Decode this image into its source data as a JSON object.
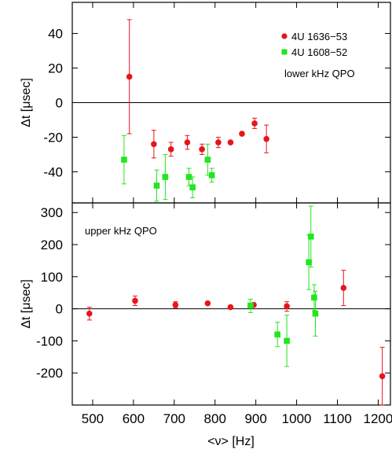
{
  "chart_data": [
    {
      "type": "scatter",
      "panel": "top",
      "xlim": [
        450,
        1230
      ],
      "ylim": [
        -58,
        58
      ],
      "yticks": [
        -40,
        -20,
        0,
        20,
        40
      ],
      "ytick_labels": [
        "-40",
        "-20",
        "0",
        "20",
        "40"
      ],
      "ylabel": "Δt [μsec]",
      "annotation": "lower kHz QPO",
      "zero_line": true,
      "series": [
        {
          "name": "4U 1636−53",
          "marker": "circle",
          "color": "#e8141c",
          "points": [
            {
              "x": 590,
              "y": 15,
              "lo": -18,
              "hi": 48
            },
            {
              "x": 650,
              "y": -24,
              "lo": -32,
              "hi": -16
            },
            {
              "x": 692,
              "y": -27,
              "lo": -31,
              "hi": -23
            },
            {
              "x": 732,
              "y": -23,
              "lo": -27,
              "hi": -19
            },
            {
              "x": 768,
              "y": -27,
              "lo": -30,
              "hi": -24
            },
            {
              "x": 808,
              "y": -23,
              "lo": -26,
              "hi": -20
            },
            {
              "x": 838,
              "y": -23,
              "lo": -23,
              "hi": -23
            },
            {
              "x": 866,
              "y": -18,
              "lo": -18,
              "hi": -18
            },
            {
              "x": 897,
              "y": -12,
              "lo": -15,
              "hi": -9
            },
            {
              "x": 926,
              "y": -21,
              "lo": -29,
              "hi": -13
            }
          ]
        },
        {
          "name": "4U 1608−52",
          "marker": "square",
          "color": "#22e61e",
          "points": [
            {
              "x": 577,
              "y": -33,
              "lo": -47,
              "hi": -19
            },
            {
              "x": 657,
              "y": -48,
              "lo": -57,
              "hi": -39
            },
            {
              "x": 678,
              "y": -43,
              "lo": -56,
              "hi": -30
            },
            {
              "x": 736,
              "y": -43,
              "lo": -48,
              "hi": -38
            },
            {
              "x": 745,
              "y": -49,
              "lo": -55,
              "hi": -43
            },
            {
              "x": 782,
              "y": -33,
              "lo": -42,
              "hi": -24
            },
            {
              "x": 792,
              "y": -42,
              "lo": -46,
              "hi": -38
            }
          ]
        }
      ]
    },
    {
      "type": "scatter",
      "panel": "bottom",
      "xlim": [
        450,
        1230
      ],
      "ylim": [
        -300,
        330
      ],
      "xticks": [
        500,
        600,
        700,
        800,
        900,
        1000,
        1100,
        1200
      ],
      "xtick_labels": [
        "500",
        "600",
        "700",
        "800",
        "900",
        "1000",
        "1100",
        "1200"
      ],
      "yticks": [
        -200,
        -100,
        0,
        100,
        200,
        300
      ],
      "ytick_labels": [
        "-200",
        "-100",
        "0",
        "100",
        "200",
        "300"
      ],
      "xlabel": "<ν> [Hz]",
      "ylabel": "Δt [μsec]",
      "annotation": "upper kHz QPO",
      "zero_line": true,
      "series": [
        {
          "name": "4U 1636−53",
          "marker": "circle",
          "color": "#e8141c",
          "points": [
            {
              "x": 492,
              "y": -15,
              "lo": -35,
              "hi": 5
            },
            {
              "x": 604,
              "y": 25,
              "lo": 10,
              "hi": 40
            },
            {
              "x": 703,
              "y": 12,
              "lo": 3,
              "hi": 22
            },
            {
              "x": 782,
              "y": 17,
              "lo": 17,
              "hi": 17
            },
            {
              "x": 838,
              "y": 5,
              "lo": 5,
              "hi": 5
            },
            {
              "x": 895,
              "y": 12,
              "lo": 12,
              "hi": 12
            },
            {
              "x": 976,
              "y": 8,
              "lo": -8,
              "hi": 22
            },
            {
              "x": 1115,
              "y": 65,
              "lo": 10,
              "hi": 120
            },
            {
              "x": 1210,
              "y": -210,
              "lo": -300,
              "hi": -120
            }
          ]
        },
        {
          "name": "4U 1608−52",
          "marker": "square",
          "color": "#22e61e",
          "points": [
            {
              "x": 887,
              "y": 10,
              "lo": -12,
              "hi": 30
            },
            {
              "x": 953,
              "y": -80,
              "lo": -118,
              "hi": -42
            },
            {
              "x": 976,
              "y": -100,
              "lo": -180,
              "hi": -20
            },
            {
              "x": 1030,
              "y": 145,
              "lo": 60,
              "hi": 230
            },
            {
              "x": 1035,
              "y": 225,
              "lo": 130,
              "hi": 320
            },
            {
              "x": 1043,
              "y": 35,
              "lo": -5,
              "hi": 75
            },
            {
              "x": 1046,
              "y": -15,
              "lo": -85,
              "hi": 55
            }
          ]
        }
      ]
    }
  ],
  "legend": {
    "placement": "top-right",
    "items": [
      {
        "label": "4U 1636−53",
        "marker": "circle",
        "color": "#e8141c"
      },
      {
        "label": "4U 1608−52",
        "marker": "square",
        "color": "#22e61e"
      }
    ]
  }
}
